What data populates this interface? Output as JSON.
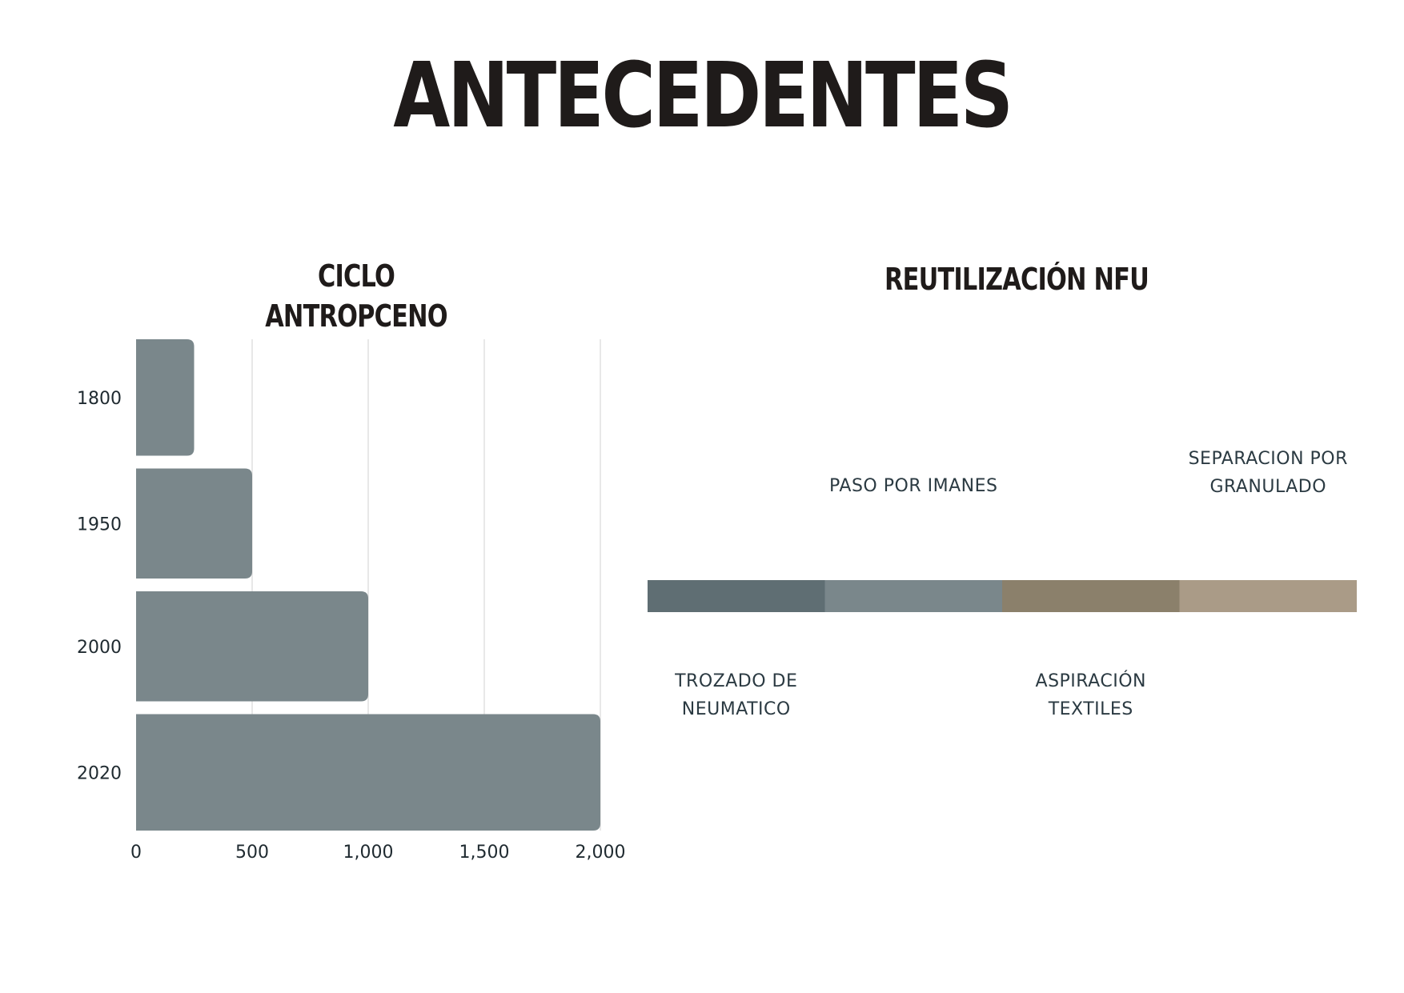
{
  "page": {
    "title": "ANTECEDENTES"
  },
  "left_section": {
    "title": "CICLO ANTROPCENO"
  },
  "right_section": {
    "title": "REUTILIZACIÓN NFU",
    "steps": [
      {
        "label_top": "",
        "label_bottom": "TROZADO DE NEUMATICO",
        "color": "#5f6e73"
      },
      {
        "label_top": "PASO POR IMANES",
        "label_bottom": "",
        "color": "#7a878b"
      },
      {
        "label_top": "",
        "label_bottom": "ASPIRACIÓN TEXTILES",
        "color": "#8b806b"
      },
      {
        "label_top": "SEPARACION POR GRANULADO",
        "label_bottom": "",
        "color": "#aa9b87"
      }
    ]
  },
  "chart_data": {
    "type": "bar",
    "orientation": "horizontal",
    "categories": [
      "1800",
      "1950",
      "2000",
      "2020"
    ],
    "values": [
      250,
      500,
      1000,
      2000
    ],
    "xlim": [
      0,
      2000
    ],
    "xticks": [
      "0",
      "500",
      "1,000",
      "1,500",
      "2,000"
    ],
    "xtick_values": [
      0,
      500,
      1000,
      1500,
      2000
    ],
    "grid": true,
    "bar_color": "#7a878b",
    "title": "CICLO ANTROPCENO"
  }
}
